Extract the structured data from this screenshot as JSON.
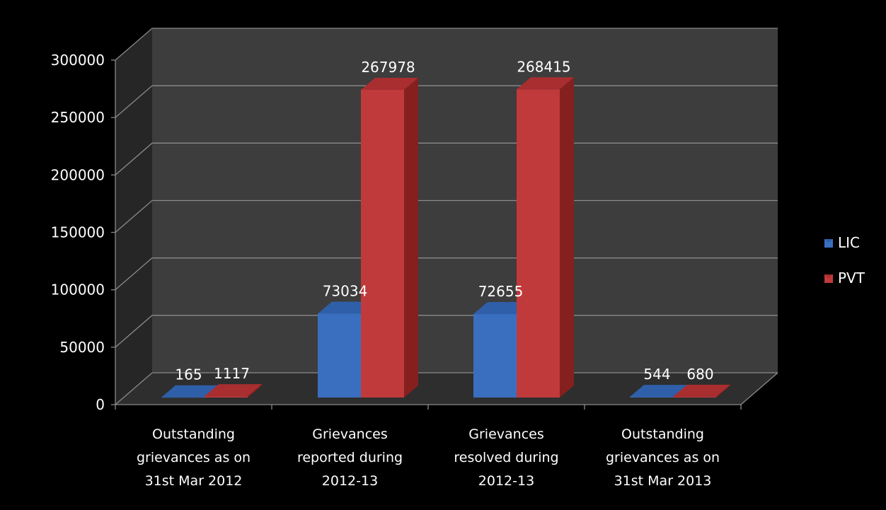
{
  "chart_data": {
    "type": "bar",
    "title": "",
    "xlabel": "",
    "ylabel": "",
    "ylim": [
      0,
      300000
    ],
    "yticks": [
      "0",
      "50000",
      "100000",
      "150000",
      "200000",
      "250000",
      "300000"
    ],
    "categories": [
      [
        "Outstanding",
        "grievances as on",
        "31st Mar 2012"
      ],
      [
        "Grievances",
        "reported during",
        "2012-13"
      ],
      [
        "Grievances",
        "resolved during",
        "2012-13"
      ],
      [
        "Outstanding",
        "grievances as on",
        "31st Mar 2013"
      ]
    ],
    "series": [
      {
        "name": "LIC",
        "values": [
          165,
          73034,
          72655,
          544
        ]
      },
      {
        "name": "PVT",
        "values": [
          1117,
          267978,
          268415,
          680
        ]
      }
    ],
    "data_labels": [
      [
        "165",
        "73034",
        "72655",
        "544"
      ],
      [
        "1117",
        "267978",
        "268415",
        "680"
      ]
    ],
    "grid": true,
    "legend_position": "right",
    "style": "3d-clustered-column"
  },
  "colors": {
    "background": "#000000",
    "wall": "#3d3d3d",
    "side_wall": "#262626",
    "floor": "#2e2e2e",
    "gridline": "#8a8a8a",
    "text": "#ffffff",
    "series": [
      {
        "front": "#3a6fc0",
        "top": "#2f5fa8",
        "side": "#244f8f"
      },
      {
        "front": "#c0393b",
        "top": "#a82e30",
        "side": "#85201f"
      }
    ]
  }
}
